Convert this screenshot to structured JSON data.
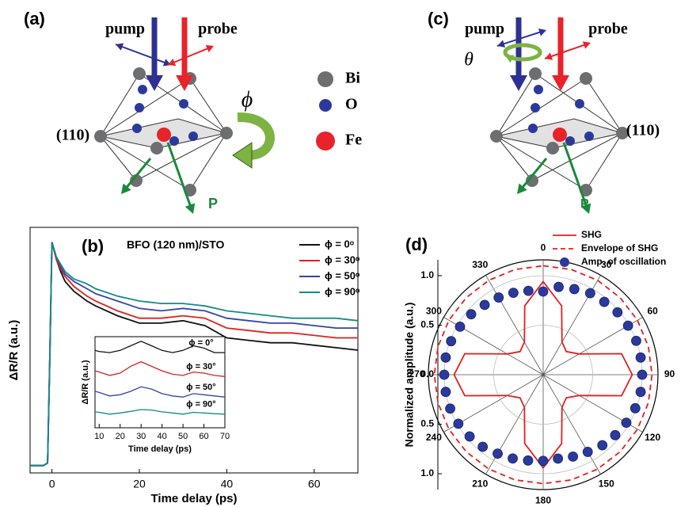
{
  "diagram_a": {
    "label": "(a)",
    "pump": "pump",
    "probe": "probe",
    "plane": "(110)",
    "angle": "ϕ",
    "polarization": "P",
    "legend": [
      {
        "name": "Bi",
        "color": "#6d6e70"
      },
      {
        "name": "O",
        "color": "#2b3a9a"
      },
      {
        "name": "Fe",
        "color": "#e8232a"
      }
    ]
  },
  "diagram_c": {
    "label": "(c)",
    "pump": "pump",
    "probe": "probe",
    "plane": "(110)",
    "angle": "θ",
    "polarization": "P"
  },
  "chart_data": [
    {
      "type": "line",
      "label": "(b)",
      "title": "BFO (120 nm)/STO",
      "x_label": "Time delay (ps)",
      "y_label": "ΔR/R (a.u.)",
      "x": [
        -5,
        -2,
        -1,
        -0.5,
        0,
        1,
        2,
        3,
        5,
        8,
        10,
        15,
        20,
        25,
        30,
        35,
        40,
        45,
        50,
        55,
        60,
        65,
        70
      ],
      "xlim": [
        -5,
        70
      ],
      "xticks": [
        0,
        20,
        40,
        60
      ],
      "ylim": [
        0,
        1
      ],
      "series": [
        {
          "name": "ϕ = 0ᵒ",
          "color": "#111111",
          "values": [
            0.03,
            0.03,
            0.04,
            0.45,
            0.94,
            0.87,
            0.82,
            0.78,
            0.74,
            0.7,
            0.68,
            0.64,
            0.61,
            0.61,
            0.62,
            0.6,
            0.55,
            0.54,
            0.53,
            0.53,
            0.52,
            0.51,
            0.5
          ]
        },
        {
          "name": "ϕ = 30ᵒ",
          "color": "#e02020",
          "values": [
            0.03,
            0.03,
            0.04,
            0.45,
            0.94,
            0.87,
            0.83,
            0.8,
            0.76,
            0.72,
            0.7,
            0.66,
            0.63,
            0.63,
            0.64,
            0.63,
            0.59,
            0.58,
            0.57,
            0.57,
            0.56,
            0.55,
            0.55
          ]
        },
        {
          "name": "ϕ = 50ᵒ",
          "color": "#3344aa",
          "values": [
            0.03,
            0.03,
            0.04,
            0.45,
            0.94,
            0.88,
            0.84,
            0.81,
            0.78,
            0.75,
            0.73,
            0.7,
            0.67,
            0.66,
            0.67,
            0.66,
            0.63,
            0.62,
            0.61,
            0.61,
            0.6,
            0.59,
            0.59
          ]
        },
        {
          "name": "ϕ = 90ᵒ",
          "color": "#138a8a",
          "values": [
            0.03,
            0.03,
            0.04,
            0.45,
            0.94,
            0.88,
            0.85,
            0.82,
            0.79,
            0.77,
            0.75,
            0.72,
            0.7,
            0.69,
            0.69,
            0.68,
            0.66,
            0.65,
            0.64,
            0.63,
            0.63,
            0.63,
            0.62
          ]
        }
      ]
    },
    {
      "type": "line",
      "x_label": "Time delay (ps)",
      "y_label": "ΔR/R (a.u.)",
      "x": [
        8,
        10,
        15,
        20,
        25,
        30,
        35,
        40,
        45,
        50,
        55,
        60,
        65,
        70
      ],
      "xlim": [
        8,
        70
      ],
      "xticks": [
        10,
        20,
        30,
        40,
        50,
        60,
        70
      ],
      "ylim": [
        0,
        4
      ],
      "series": [
        {
          "name": "ϕ = 0°",
          "color": "#111111",
          "values": [
            3.4,
            3.35,
            3.3,
            3.4,
            3.6,
            3.8,
            3.6,
            3.4,
            3.3,
            3.4,
            3.6,
            3.5,
            3.3,
            3.3
          ]
        },
        {
          "name": "ϕ = 30°",
          "color": "#e02020",
          "values": [
            2.5,
            2.45,
            2.3,
            2.4,
            2.7,
            2.9,
            2.7,
            2.5,
            2.35,
            2.3,
            2.45,
            2.4,
            2.3,
            2.25
          ]
        },
        {
          "name": "ϕ = 50°",
          "color": "#3344aa",
          "values": [
            1.6,
            1.55,
            1.4,
            1.45,
            1.6,
            1.8,
            1.7,
            1.5,
            1.4,
            1.35,
            1.5,
            1.45,
            1.4,
            1.35
          ]
        },
        {
          "name": "ϕ = 90°",
          "color": "#138a8a",
          "values": [
            0.7,
            0.68,
            0.6,
            0.65,
            0.72,
            0.8,
            0.78,
            0.7,
            0.65,
            0.6,
            0.68,
            0.65,
            0.62,
            0.6
          ]
        }
      ]
    },
    {
      "type": "polar",
      "label": "(d)",
      "y_label": "Normalized amplitude (a.u.)",
      "grid": true,
      "rlim": [
        0,
        1.16
      ],
      "xticks": [
        0,
        30,
        60,
        90,
        120,
        150,
        180,
        210,
        240,
        270,
        300,
        330
      ],
      "yticks": [
        {
          "value": 1,
          "label": "1.0"
        },
        {
          "value": 0.5,
          "label": "0.5"
        },
        {
          "value": 0,
          "label": "0.0"
        },
        {
          "value": -0.5,
          "label": "0.5"
        },
        {
          "value": -1,
          "label": "1.0"
        }
      ],
      "series": [
        {
          "name": "SHG",
          "color": "#e02020",
          "style": "solid",
          "x": [
            0,
            15,
            30,
            45,
            60,
            75,
            90,
            105,
            120,
            135,
            150,
            165,
            180,
            195,
            210,
            225,
            240,
            255,
            270,
            285,
            300,
            315,
            330,
            345
          ],
          "values": [
            0.94,
            0.72,
            0.38,
            0.33,
            0.42,
            0.82,
            0.9,
            0.82,
            0.42,
            0.33,
            0.38,
            0.72,
            0.94,
            0.72,
            0.38,
            0.33,
            0.42,
            0.82,
            0.9,
            0.82,
            0.42,
            0.33,
            0.38,
            0.72
          ]
        },
        {
          "name": "Envelope of SHG",
          "color": "#e02020",
          "style": "dashed",
          "x": [
            0,
            15,
            30,
            45,
            60,
            75,
            90,
            105,
            120,
            135,
            150,
            165,
            180,
            195,
            210,
            225,
            240,
            255,
            270,
            285,
            300,
            315,
            330,
            345
          ],
          "values": [
            1.1,
            1.1,
            1.1,
            1.1,
            1.1,
            1.1,
            1.1,
            1.1,
            1.1,
            1.1,
            1.1,
            1.1,
            1.1,
            1.1,
            1.1,
            1.1,
            1.1,
            1.1,
            1.1,
            1.1,
            1.1,
            1.1,
            1.1,
            1.1
          ]
        },
        {
          "name": "Amp. of oscillation",
          "color": "#2b3a9a",
          "style": "points",
          "x": [
            0,
            10,
            20,
            30,
            40,
            50,
            60,
            70,
            80,
            90,
            100,
            110,
            120,
            130,
            140,
            150,
            160,
            170,
            180,
            190,
            200,
            210,
            220,
            230,
            240,
            250,
            260,
            270,
            280,
            290,
            300,
            310,
            320,
            330,
            340,
            350
          ],
          "values": [
            0.84,
            0.9,
            0.92,
            0.95,
            0.96,
            0.98,
            0.99,
            1.0,
            1.0,
            1.0,
            1.0,
            0.99,
            0.97,
            0.95,
            0.93,
            0.9,
            0.88,
            0.86,
            0.87,
            0.88,
            0.9,
            0.92,
            0.95,
            0.97,
            0.99,
            1.0,
            1.0,
            1.0,
            1.0,
            0.99,
            0.97,
            0.95,
            0.92,
            0.9,
            0.88,
            0.86
          ]
        }
      ]
    }
  ]
}
